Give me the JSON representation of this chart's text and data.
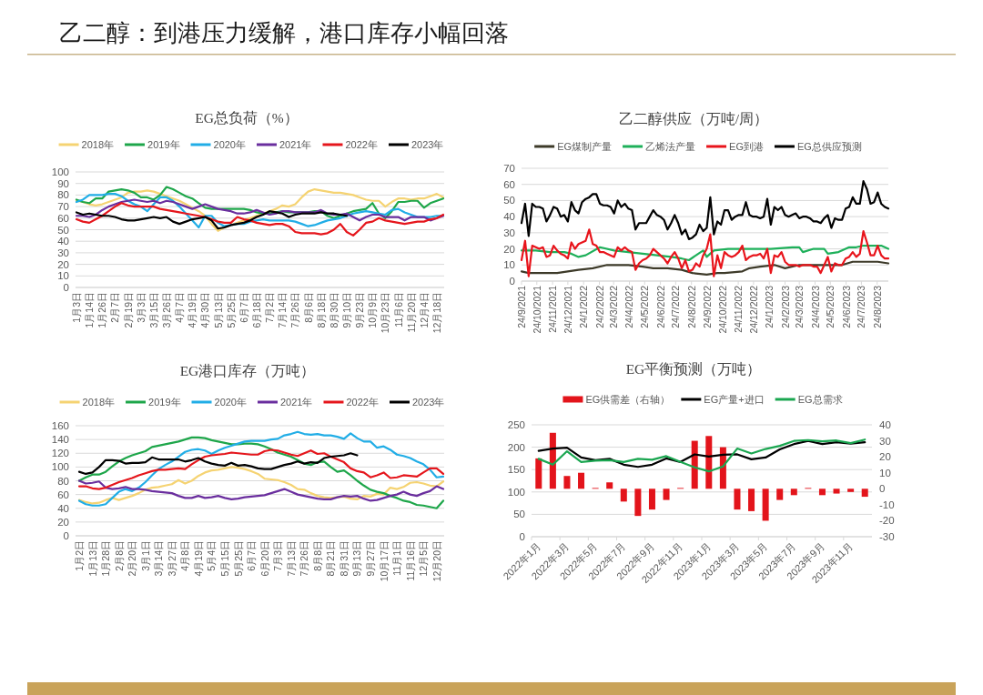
{
  "chart_data": [
    {
      "type": "line",
      "title": "EG总负荷（%）",
      "annotations": [
        "乙二醇：到港压力缓解，港口库存小幅回落"
      ],
      "categories": [
        "1月3日",
        null,
        "1月14日",
        null,
        "1月26日",
        null,
        "2月7日",
        null,
        "2月19日",
        null,
        "3月3日",
        null,
        "3月15日",
        null,
        "3月26日",
        null,
        "4月7日",
        null,
        "4月19日",
        null,
        "4月30日",
        null,
        "5月13日",
        null,
        "5月25日",
        null,
        "6月7日",
        null,
        "6月18日",
        null,
        "7月2日",
        null,
        "7月14日",
        null,
        "7月26日",
        null,
        "8月6日",
        null,
        "8月18日",
        null,
        "8月30日",
        null,
        "9月10日",
        null,
        "9月23日",
        null,
        "10月9日",
        null,
        "10月23日",
        null,
        "11月6日",
        null,
        "11月20日",
        null,
        "12月4日",
        null,
        "12月18日",
        null
      ],
      "series": [
        {
          "name": "2018年",
          "color": "#f5d372",
          "values": [
            75,
            74,
            72,
            71,
            72,
            74,
            76,
            78,
            82,
            83,
            83,
            84,
            83,
            81,
            79,
            77,
            75,
            72,
            69,
            66,
            62,
            55,
            49,
            52,
            54,
            56,
            58,
            60,
            62,
            64,
            66,
            68,
            71,
            70,
            72,
            78,
            83,
            85,
            84,
            83,
            82,
            82,
            81,
            80,
            78,
            76,
            75,
            75,
            70,
            74,
            77,
            77,
            76,
            77,
            77,
            79,
            81,
            78
          ]
        },
        {
          "name": "2019年",
          "color": "#1ea64a",
          "values": [
            76,
            74,
            73,
            77,
            77,
            83,
            84,
            85,
            84,
            82,
            78,
            78,
            76,
            80,
            87,
            85,
            82,
            79,
            77,
            73,
            69,
            68,
            68,
            68,
            68,
            68,
            68,
            67,
            65,
            64,
            64,
            65,
            66,
            65,
            65,
            65,
            65,
            66,
            66,
            62,
            60,
            62,
            64,
            66,
            67,
            68,
            73,
            64,
            60,
            66,
            74,
            74,
            75,
            75,
            69,
            73,
            75,
            77
          ]
        },
        {
          "name": "2020年",
          "color": "#21ade6",
          "values": [
            74,
            76,
            80,
            80,
            80,
            81,
            81,
            79,
            75,
            72,
            70,
            66,
            72,
            78,
            78,
            75,
            70,
            64,
            58,
            52,
            62,
            62,
            56,
            53,
            54,
            55,
            55,
            57,
            58,
            59,
            58,
            58,
            58,
            58,
            57,
            55,
            53,
            54,
            56,
            58,
            59,
            60,
            62,
            64,
            65,
            66,
            65,
            64,
            63,
            67,
            68,
            65,
            63,
            61,
            61,
            61,
            62,
            62
          ]
        },
        {
          "name": "2021年",
          "color": "#6a2e9e",
          "values": [
            62,
            62,
            61,
            63,
            67,
            70,
            72,
            74,
            75,
            76,
            75,
            74,
            75,
            73,
            75,
            74,
            72,
            70,
            68,
            70,
            72,
            70,
            68,
            67,
            66,
            64,
            64,
            65,
            67,
            65,
            63,
            64,
            66,
            66,
            65,
            65,
            65,
            65,
            67,
            64,
            63,
            63,
            64,
            61,
            58,
            61,
            63,
            63,
            61,
            61,
            61,
            58,
            61,
            61,
            61,
            58,
            60,
            62
          ]
        },
        {
          "name": "2022年",
          "color": "#e5161c",
          "values": [
            59,
            57,
            56,
            59,
            62,
            66,
            70,
            73,
            71,
            70,
            70,
            70,
            70,
            68,
            67,
            66,
            65,
            64,
            63,
            62,
            61,
            59,
            57,
            56,
            56,
            61,
            59,
            58,
            56,
            55,
            54,
            55,
            55,
            53,
            48,
            47,
            47,
            47,
            46,
            47,
            50,
            55,
            48,
            45,
            50,
            56,
            57,
            60,
            58,
            57,
            56,
            55,
            56,
            57,
            57,
            59,
            60,
            63
          ]
        },
        {
          "name": "2023年",
          "color": "#000000",
          "values": [
            65,
            63,
            64,
            63,
            62,
            62,
            61,
            59,
            58,
            58,
            59,
            60,
            61,
            60,
            61,
            57,
            55,
            57,
            59,
            60,
            61,
            58,
            51,
            52,
            54,
            55,
            56,
            58,
            61,
            63,
            66,
            65,
            64,
            61,
            63,
            64,
            64,
            64,
            65,
            64,
            64,
            63,
            62,
            null,
            null,
            null,
            null,
            null,
            null,
            null,
            null,
            null,
            null,
            null,
            null,
            null,
            null,
            null
          ]
        }
      ],
      "ylim": [
        0,
        100
      ],
      "yticks": [
        0,
        10,
        20,
        30,
        40,
        50,
        60,
        70,
        80,
        90,
        100
      ],
      "grid": "y",
      "legend": "top"
    },
    {
      "type": "line",
      "title": "乙二醇供应（万吨/周）",
      "x": [
        "2021-09-24",
        "2021-10-01",
        "2021-10-08",
        "2021-10-15",
        "2021-10-22",
        "2021-10-29",
        "2021-11-05",
        "2021-11-12",
        "2021-11-19",
        "2021-11-26",
        "2021-12-03",
        "2021-12-10",
        "2021-12-17",
        "2021-12-24",
        "2021-12-31",
        "2022-01-07",
        "2022-01-14",
        "2022-01-21",
        "2022-01-28",
        "2022-02-04",
        "2022-02-11",
        "2022-02-18",
        "2022-02-25",
        "2022-03-04",
        "2022-03-11",
        "2022-03-18",
        "2022-03-25",
        "2022-04-01",
        "2022-04-08",
        "2022-04-15",
        "2022-04-22",
        "2022-04-29",
        "2022-05-06",
        "2022-05-13",
        "2022-05-20",
        "2022-05-27",
        "2022-06-03",
        "2022-06-10",
        "2022-06-17",
        "2022-06-24",
        "2022-07-01",
        "2022-07-08",
        "2022-07-15",
        "2022-07-22",
        "2022-07-29",
        "2022-08-05",
        "2022-08-12",
        "2022-08-19",
        "2022-08-26",
        "2022-09-02",
        "2022-09-09",
        "2022-09-16",
        "2022-09-23",
        "2022-09-30",
        "2022-10-07",
        "2022-10-14",
        "2022-10-21",
        "2022-10-28",
        "2022-11-04",
        "2022-11-11",
        "2022-11-18",
        "2022-11-25",
        "2022-12-02",
        "2022-12-09",
        "2022-12-16",
        "2022-12-23",
        "2022-12-30",
        "2023-01-06",
        "2023-01-13",
        "2023-01-20",
        "2023-01-27",
        "2023-02-03",
        "2023-02-10",
        "2023-02-17",
        "2023-02-24",
        "2023-03-03",
        "2023-03-10",
        "2023-03-17",
        "2023-03-24",
        "2023-03-31",
        "2023-04-07",
        "2023-04-14",
        "2023-04-21",
        "2023-04-28",
        "2023-05-05",
        "2023-05-12",
        "2023-05-19",
        "2023-05-26",
        "2023-06-02",
        "2023-06-09",
        "2023-06-16",
        "2023-06-23",
        "2023-06-30",
        "2023-07-07",
        "2023-07-14",
        "2023-07-21",
        "2023-07-28",
        "2023-08-04",
        "2023-08-11",
        "2023-08-18",
        "2023-08-25",
        "2023-09-01",
        "2023-09-08",
        "2023-09-15"
      ],
      "series": [
        {
          "name": "EG煤制产量",
          "color": "#3d3a29",
          "x": [
            "2021-09-24",
            "2021-10-08",
            "2021-10-22",
            "2021-10-29",
            "2021-11-19",
            "2021-12-03",
            "2021-12-24",
            "2022-01-14",
            "2022-02-11",
            "2022-03-11",
            "2022-04-01",
            "2022-04-22",
            "2022-05-20",
            "2022-06-10",
            "2022-07-08",
            "2022-08-05",
            "2022-08-26",
            "2022-09-23",
            "2022-10-14",
            "2022-10-28",
            "2022-12-02",
            "2022-12-16",
            "2023-01-06",
            "2023-02-03",
            "2023-02-24",
            "2023-03-24",
            "2023-04-21",
            "2023-05-19",
            "2023-06-16",
            "2023-07-07",
            "2023-08-04",
            "2023-08-25",
            "2023-09-15"
          ],
          "values": [
            6,
            5,
            5,
            5,
            5,
            5,
            6,
            7,
            8,
            10,
            10,
            10,
            9,
            8,
            8,
            7,
            5,
            4,
            5,
            5,
            6,
            8,
            9,
            10,
            8,
            10,
            10,
            10,
            10,
            12,
            12,
            12,
            11
          ]
        },
        {
          "name": "乙烯法产量",
          "color": "#1eb05a",
          "x": [
            "2021-09-24",
            "2021-10-22",
            "2021-11-19",
            "2021-12-17",
            "2021-12-31",
            "2022-01-14",
            "2022-01-28",
            "2022-02-25",
            "2022-03-25",
            "2022-04-22",
            "2022-05-20",
            "2022-06-17",
            "2022-07-15",
            "2022-08-05",
            "2022-08-19",
            "2022-09-02",
            "2022-09-16",
            "2022-09-23",
            "2022-10-07",
            "2022-11-04",
            "2022-12-16",
            "2023-01-27",
            "2023-03-10",
            "2023-03-24",
            "2023-03-31",
            "2023-04-21",
            "2023-05-12",
            "2023-05-19",
            "2023-06-09",
            "2023-06-30",
            "2023-07-14",
            "2023-07-28",
            "2023-08-18",
            "2023-09-01",
            "2023-09-15"
          ],
          "values": [
            19,
            19,
            18,
            18,
            17,
            15,
            16,
            21,
            19,
            18,
            17,
            16,
            15,
            14,
            13,
            16,
            19,
            15,
            19,
            20,
            20,
            20,
            21,
            21,
            18,
            20,
            20,
            17,
            18,
            21,
            21,
            22,
            22,
            22,
            20
          ]
        },
        {
          "name": "EG到港",
          "color": "#e8141b",
          "values": [
            13,
            25,
            3,
            22,
            21,
            20,
            21,
            15,
            16,
            22,
            19,
            17,
            16,
            14,
            24,
            20,
            23,
            24,
            25,
            32,
            23,
            22,
            18,
            18,
            17,
            16,
            15,
            21,
            19,
            21,
            19,
            18,
            7,
            11,
            13,
            14,
            16,
            20,
            18,
            16,
            14,
            11,
            15,
            18,
            14,
            8,
            13,
            6,
            7,
            11,
            9,
            16,
            20,
            29,
            3,
            16,
            8,
            18,
            16,
            15,
            16,
            18,
            22,
            13,
            15,
            16,
            16,
            17,
            14,
            20,
            5,
            16,
            15,
            18,
            12,
            10,
            10,
            10,
            9,
            10,
            10,
            10,
            9,
            9,
            5,
            10,
            15,
            6,
            11,
            10,
            10,
            14,
            15,
            18,
            15,
            17,
            31,
            24,
            16,
            16,
            22,
            16,
            14,
            14
          ]
        },
        {
          "name": "EG总供应预测",
          "color": "#000000",
          "values": [
            36,
            48,
            28,
            48,
            46,
            46,
            45,
            37,
            41,
            46,
            45,
            40,
            41,
            37,
            49,
            44,
            42,
            49,
            51,
            52,
            54,
            54,
            48,
            47,
            47,
            46,
            42,
            50,
            46,
            48,
            45,
            44,
            32,
            36,
            36,
            36,
            40,
            44,
            41,
            40,
            38,
            32,
            36,
            41,
            36,
            29,
            32,
            26,
            27,
            29,
            35,
            31,
            33,
            52,
            29,
            37,
            35,
            44,
            44,
            38,
            40,
            41,
            41,
            49,
            41,
            40,
            40,
            39,
            40,
            51,
            35,
            46,
            44,
            46,
            41,
            40,
            41,
            42,
            39,
            40,
            40,
            39,
            37,
            37,
            36,
            39,
            41,
            33,
            39,
            38,
            38,
            45,
            46,
            52,
            48,
            48,
            62,
            57,
            48,
            49,
            55,
            48,
            46,
            45
          ]
        }
      ],
      "xlim": [
        "2021-09-24",
        "2023-09-15"
      ],
      "xticks": [
        {
          "value": "2021-09-24",
          "label": "24/9/2021"
        },
        {
          "value": "2021-10-24",
          "label": "24/10/2021"
        },
        {
          "value": "2021-11-24",
          "label": "24/11/2021"
        },
        {
          "value": "2021-12-24",
          "label": "24/12/2021"
        },
        {
          "value": "2022-01-24",
          "label": "24/1/2022"
        },
        {
          "value": "2022-02-24",
          "label": "24/2/2022"
        },
        {
          "value": "2022-03-24",
          "label": "24/3/2022"
        },
        {
          "value": "2022-04-24",
          "label": "24/4/2022"
        },
        {
          "value": "2022-05-24",
          "label": "24/5/2022"
        },
        {
          "value": "2022-06-24",
          "label": "24/6/2022"
        },
        {
          "value": "2022-07-24",
          "label": "24/7/2022"
        },
        {
          "value": "2022-08-24",
          "label": "24/8/2022"
        },
        {
          "value": "2022-09-24",
          "label": "24/9/2022"
        },
        {
          "value": "2022-10-24",
          "label": "24/10/2022"
        },
        {
          "value": "2022-11-24",
          "label": "24/11/2022"
        },
        {
          "value": "2022-12-24",
          "label": "24/12/2022"
        },
        {
          "value": "2023-01-24",
          "label": "24/1/2023"
        },
        {
          "value": "2023-02-24",
          "label": "24/2/2023"
        },
        {
          "value": "2023-03-24",
          "label": "24/3/2023"
        },
        {
          "value": "2023-04-24",
          "label": "24/4/2023"
        },
        {
          "value": "2023-05-24",
          "label": "24/5/2023"
        },
        {
          "value": "2023-06-24",
          "label": "24/6/2023"
        },
        {
          "value": "2023-07-24",
          "label": "24/7/2023"
        },
        {
          "value": "2023-08-24",
          "label": "24/8/2023"
        }
      ],
      "ylim": [
        0,
        70
      ],
      "yticks": [
        0,
        10,
        20,
        30,
        40,
        50,
        60,
        70
      ],
      "grid": "y",
      "legend": "top"
    },
    {
      "type": "line",
      "title": "EG港口库存（万吨）",
      "categories": [
        "1月2日",
        null,
        "1月13日",
        null,
        "1月28日",
        null,
        "2月8日",
        null,
        "2月20日",
        null,
        "3月1日",
        null,
        "3月14日",
        null,
        "3月27日",
        null,
        "4月8日",
        null,
        "4月19日",
        null,
        "5月4日",
        null,
        "5月15日",
        null,
        "5月25日",
        null,
        "6月7日",
        null,
        "6月20日",
        null,
        "7月3日",
        null,
        "7月13日",
        null,
        "7月26日",
        null,
        "8月8日",
        null,
        "8月21日",
        null,
        "8月31日",
        null,
        "9月13日",
        null,
        "9月27日",
        null,
        "10月17日",
        null,
        "11月1日",
        null,
        "11月16日",
        null,
        "12月5日",
        null,
        "12月20日",
        null
      ],
      "series": [
        {
          "name": "2018年",
          "color": "#f5d372",
          "values": [
            52,
            49,
            47,
            48,
            52,
            55,
            52,
            55,
            58,
            62,
            67,
            70,
            71,
            73,
            75,
            81,
            76,
            80,
            87,
            92,
            95,
            96,
            98,
            100,
            99,
            97,
            94,
            90,
            83,
            82,
            81,
            78,
            74,
            68,
            67,
            62,
            58,
            56,
            55,
            56,
            57,
            54,
            53,
            58,
            57,
            61,
            60,
            70,
            68,
            71,
            77,
            78,
            76,
            73,
            72,
            79
          ]
        },
        {
          "name": "2019年",
          "color": "#1ea64a",
          "values": [
            80,
            85,
            89,
            89,
            93,
            101,
            108,
            113,
            117,
            120,
            123,
            129,
            131,
            133,
            135,
            137,
            140,
            143,
            143,
            142,
            139,
            137,
            135,
            133,
            133,
            134,
            134,
            133,
            130,
            126,
            121,
            118,
            115,
            110,
            105,
            103,
            107,
            108,
            100,
            93,
            95,
            88,
            80,
            73,
            67,
            64,
            62,
            58,
            55,
            51,
            49,
            45,
            44,
            42,
            40,
            51
          ]
        },
        {
          "name": "2020年",
          "color": "#21ade6",
          "values": [
            51,
            46,
            44,
            44,
            46,
            55,
            64,
            68,
            65,
            70,
            78,
            88,
            97,
            103,
            108,
            115,
            122,
            125,
            126,
            124,
            119,
            124,
            128,
            131,
            134,
            137,
            138,
            138,
            138,
            140,
            141,
            146,
            148,
            151,
            148,
            147,
            148,
            146,
            146,
            144,
            141,
            149,
            142,
            137,
            137,
            128,
            130,
            125,
            118,
            116,
            113,
            108,
            104,
            96,
            85,
            86
          ]
        },
        {
          "name": "2021年",
          "color": "#6a2e9e",
          "values": [
            80,
            76,
            77,
            79,
            70,
            68,
            69,
            71,
            68,
            68,
            67,
            65,
            64,
            63,
            62,
            58,
            55,
            55,
            58,
            55,
            56,
            58,
            55,
            53,
            54,
            56,
            57,
            58,
            59,
            62,
            65,
            68,
            64,
            60,
            58,
            56,
            54,
            53,
            53,
            56,
            58,
            57,
            58,
            54,
            51,
            52,
            55,
            58,
            60,
            64,
            60,
            58,
            62,
            65,
            72,
            68
          ]
        },
        {
          "name": "2022年",
          "color": "#e5161c",
          "values": [
            72,
            72,
            69,
            68,
            70,
            74,
            78,
            81,
            84,
            88,
            91,
            94,
            96,
            96,
            97,
            98,
            97,
            104,
            110,
            115,
            117,
            118,
            119,
            121,
            120,
            119,
            118,
            118,
            123,
            125,
            124,
            121,
            118,
            116,
            120,
            124,
            119,
            120,
            115,
            111,
            107,
            98,
            94,
            92,
            85,
            88,
            92,
            84,
            85,
            88,
            87,
            86,
            92,
            98,
            98,
            90
          ]
        },
        {
          "name": "2023年",
          "color": "#000000",
          "values": [
            93,
            90,
            92,
            100,
            110,
            110,
            109,
            105,
            106,
            106,
            107,
            114,
            111,
            111,
            111,
            111,
            108,
            110,
            113,
            108,
            105,
            103,
            102,
            106,
            102,
            103,
            101,
            98,
            97,
            97,
            100,
            103,
            105,
            108,
            105,
            107,
            106,
            113,
            115,
            116,
            117,
            120,
            117,
            null,
            null,
            null,
            null,
            null,
            null,
            null,
            null,
            null,
            null,
            null,
            null,
            null
          ]
        }
      ],
      "ylim": [
        0,
        160
      ],
      "yticks": [
        0,
        20,
        40,
        60,
        80,
        100,
        120,
        140,
        160
      ],
      "grid": "y",
      "legend": "top"
    },
    {
      "type": "bar",
      "title": "EG平衡预测（万吨）",
      "categories": [
        "2022年1月",
        null,
        "2022年3月",
        null,
        "2022年5月",
        null,
        "2022年7月",
        null,
        "2022年9月",
        null,
        "2022年11月",
        null,
        "2023年1月",
        null,
        "2023年3月",
        null,
        "2023年5月",
        null,
        "2023年7月",
        null,
        "2023年9月",
        null,
        "2023年11月",
        null
      ],
      "series": [
        {
          "name": "EG供需差（右轴）",
          "type": "bar",
          "axis": "y2",
          "color": "#e3141b",
          "values": [
            19,
            35,
            8,
            10,
            0.5,
            4,
            -8,
            -17,
            -13,
            -7,
            0.5,
            30,
            33,
            26,
            -13,
            -14,
            -20,
            -7,
            -4,
            0.5,
            -4,
            -3,
            -2,
            -5
          ]
        },
        {
          "name": "EG产量+进口",
          "type": "line",
          "color": "#000000",
          "values": [
            192,
            197,
            199,
            177,
            171,
            174,
            161,
            156,
            161,
            175,
            167,
            184,
            179,
            183,
            184,
            173,
            177,
            195,
            207,
            214,
            207,
            211,
            208,
            211
          ]
        },
        {
          "name": "EG总需求",
          "type": "line",
          "color": "#1aa650",
          "values": [
            174,
            161,
            191,
            167,
            170,
            171,
            167,
            174,
            172,
            180,
            167,
            155,
            146,
            157,
            197,
            186,
            196,
            203,
            214,
            216,
            213,
            215,
            209,
            217
          ]
        }
      ],
      "ylim": [
        0,
        250
      ],
      "yticks": [
        0,
        50,
        100,
        150,
        200,
        250
      ],
      "y2lim": [
        -30,
        40
      ],
      "y2ticks": [
        -30,
        -20,
        -10,
        0,
        10,
        20,
        30,
        40
      ],
      "grid": "y",
      "legend": "top"
    }
  ]
}
